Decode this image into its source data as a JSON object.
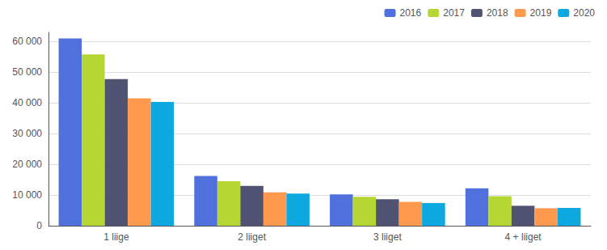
{
  "chart_data": {
    "type": "bar",
    "categories": [
      "1 liige",
      "2 liiget",
      "3 liiget",
      "4 + liiget"
    ],
    "series": [
      {
        "name": "2016",
        "values": [
          61000,
          16200,
          10200,
          12200
        ]
      },
      {
        "name": "2017",
        "values": [
          55800,
          14500,
          9400,
          9600
        ]
      },
      {
        "name": "2018",
        "values": [
          47800,
          13000,
          8600,
          6500
        ]
      },
      {
        "name": "2019",
        "values": [
          41500,
          10900,
          7800,
          5700
        ]
      },
      {
        "name": "2020",
        "values": [
          40300,
          10500,
          7400,
          5800
        ]
      }
    ],
    "ylim": [
      0,
      63000
    ],
    "yticks": [
      0,
      {
        "value": 10000,
        "label": "10 000"
      },
      {
        "value": 20000,
        "label": "20 000"
      },
      {
        "value": 30000,
        "label": "30 000"
      },
      {
        "value": 40000,
        "label": "40 000"
      },
      {
        "value": 50000,
        "label": "50 000"
      },
      {
        "value": 60000,
        "label": "60 000"
      }
    ],
    "grid": true,
    "legend": "upper right"
  }
}
